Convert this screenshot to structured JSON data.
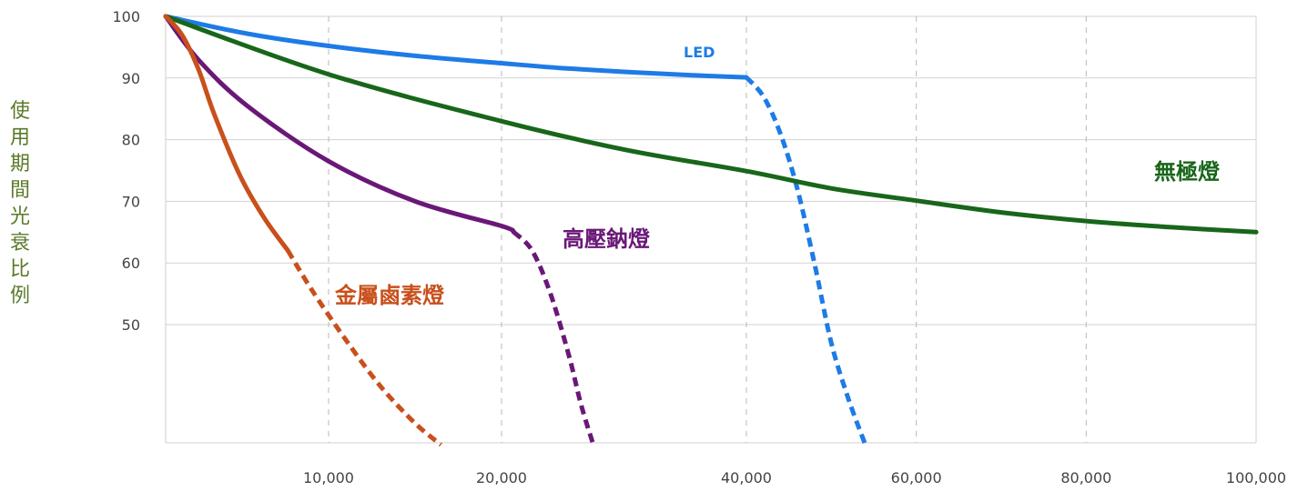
{
  "chart_data": {
    "type": "line",
    "title": "",
    "xlabel": "",
    "ylabel": "使用期間光衰比例",
    "xlim": [
      0,
      100000
    ],
    "ylim": [
      30,
      100
    ],
    "x_ticks": [
      "10,000",
      "20,000",
      "40,000",
      "60,000",
      "80,000",
      "100,000"
    ],
    "y_ticks": [
      "100",
      "90",
      "80",
      "70",
      "60",
      "50"
    ],
    "grid": {
      "horizontal": "solid",
      "vertical": "dashed"
    },
    "series": [
      {
        "name": "LED",
        "color": "#1e7be6",
        "solid": [
          [
            0,
            100
          ],
          [
            5000,
            97.2
          ],
          [
            10000,
            95.2
          ],
          [
            15000,
            93.6
          ],
          [
            20000,
            92.4
          ],
          [
            25000,
            91.6
          ],
          [
            30000,
            91
          ],
          [
            35000,
            90.5
          ],
          [
            40000,
            90.1
          ]
        ],
        "dashed": [
          [
            40000,
            90.1
          ],
          [
            42000,
            87
          ],
          [
            44000,
            81
          ],
          [
            46000,
            72
          ],
          [
            48000,
            60
          ],
          [
            50000,
            47
          ],
          [
            52000,
            38
          ],
          [
            54000,
            30.5
          ]
        ]
      },
      {
        "name": "無極燈",
        "color": "#18661a",
        "solid": [
          [
            0,
            100
          ],
          [
            10000,
            90.6
          ],
          [
            20000,
            83
          ],
          [
            30000,
            78.4
          ],
          [
            40000,
            74.9
          ],
          [
            50000,
            72.1
          ],
          [
            60000,
            70.1
          ],
          [
            70000,
            68.2
          ],
          [
            80000,
            66.8
          ],
          [
            90000,
            65.8
          ],
          [
            100000,
            65
          ]
        ]
      },
      {
        "name": "高壓鈉燈",
        "color": "#6a1878",
        "solid": [
          [
            0,
            100
          ],
          [
            2000,
            93
          ],
          [
            5000,
            85.5
          ],
          [
            10000,
            76.5
          ],
          [
            15000,
            70
          ],
          [
            20000,
            66
          ],
          [
            21000,
            65
          ]
        ],
        "dashed": [
          [
            21000,
            65
          ],
          [
            22500,
            62
          ],
          [
            24000,
            55
          ],
          [
            25500,
            45
          ],
          [
            26500,
            37
          ],
          [
            27500,
            30.5
          ]
        ]
      },
      {
        "name": "金屬鹵素燈",
        "color": "#c8501c",
        "solid": [
          [
            0,
            100
          ],
          [
            1000,
            97
          ],
          [
            2000,
            91.5
          ],
          [
            3000,
            84
          ],
          [
            4500,
            74.5
          ],
          [
            6000,
            67.5
          ],
          [
            7500,
            62
          ]
        ],
        "dashed": [
          [
            7500,
            62
          ],
          [
            9000,
            55.5
          ],
          [
            11000,
            47.5
          ],
          [
            13000,
            40
          ],
          [
            15000,
            34
          ],
          [
            16500,
            30.5
          ]
        ]
      }
    ],
    "annotations": [
      "LED",
      "無極燈",
      "高壓鈉燈",
      "金屬鹵素燈"
    ]
  }
}
